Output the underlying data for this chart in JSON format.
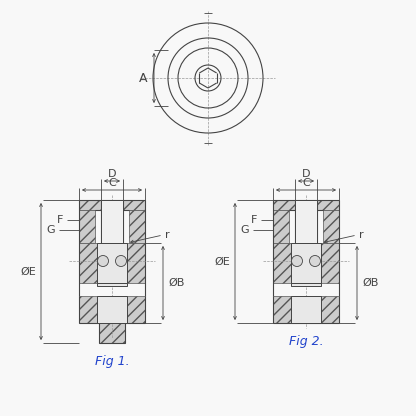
{
  "bg_color": "#f8f8f8",
  "line_color": "#444444",
  "dim_color": "#444444",
  "label_color": "#2244cc",
  "fig1_label": "Fig 1.",
  "fig2_label": "Fig 2.",
  "dim_label_A": "A",
  "dim_label_C": "C",
  "dim_label_D": "D",
  "dim_label_F": "F",
  "dim_label_G": "G",
  "dim_label_r": "r",
  "dim_label_OE": "ØE",
  "dim_label_OB": "ØB"
}
